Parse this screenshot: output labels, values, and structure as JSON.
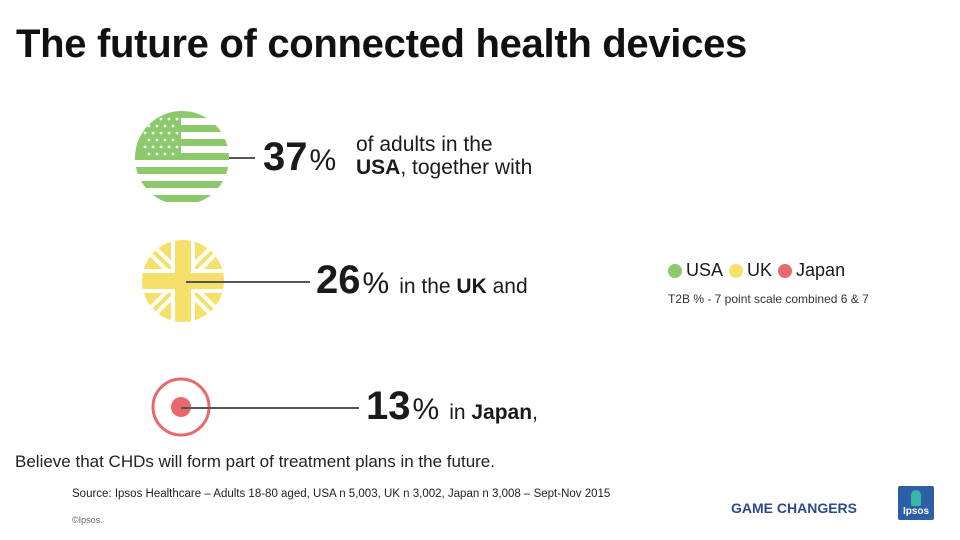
{
  "title": "The future of connected health devices",
  "colors": {
    "usa": "#8cc96b",
    "uk": "#f6e06a",
    "japan": "#e8696b",
    "brand": "#2a4b8c"
  },
  "stats": [
    {
      "country": "USA",
      "percent": "37",
      "pct_symbol": "%",
      "text_line1": "of adults in the",
      "text_bold": "USA",
      "text_after": ", together with"
    },
    {
      "country": "UK",
      "percent": "26",
      "pct_symbol": "%",
      "text_before": "in the ",
      "text_bold": "UK",
      "text_after": " and"
    },
    {
      "country": "Japan",
      "percent": "13",
      "pct_symbol": "%",
      "text_before": "in ",
      "text_bold": "Japan",
      "text_after": ","
    }
  ],
  "legend": {
    "items": [
      "USA",
      "UK",
      "Japan"
    ],
    "note": "T2B % - 7 point scale combined 6 & 7"
  },
  "believe_text": "Believe  that CHDs will form part of treatment plans in the future.",
  "source": "Source: Ipsos Healthcare – Adults 18-80 aged, USA n 5,003, UK n 3,002, Japan n 3,008 – Sept-Nov 2015",
  "copyright": "©Ipsos.",
  "brand_tag": "GAME CHANGERS",
  "logo_text": "Ipsos",
  "chart_data": {
    "type": "bar",
    "categories": [
      "USA",
      "UK",
      "Japan"
    ],
    "values": [
      37,
      26,
      13
    ],
    "unit": "%",
    "legend_position": "right"
  }
}
